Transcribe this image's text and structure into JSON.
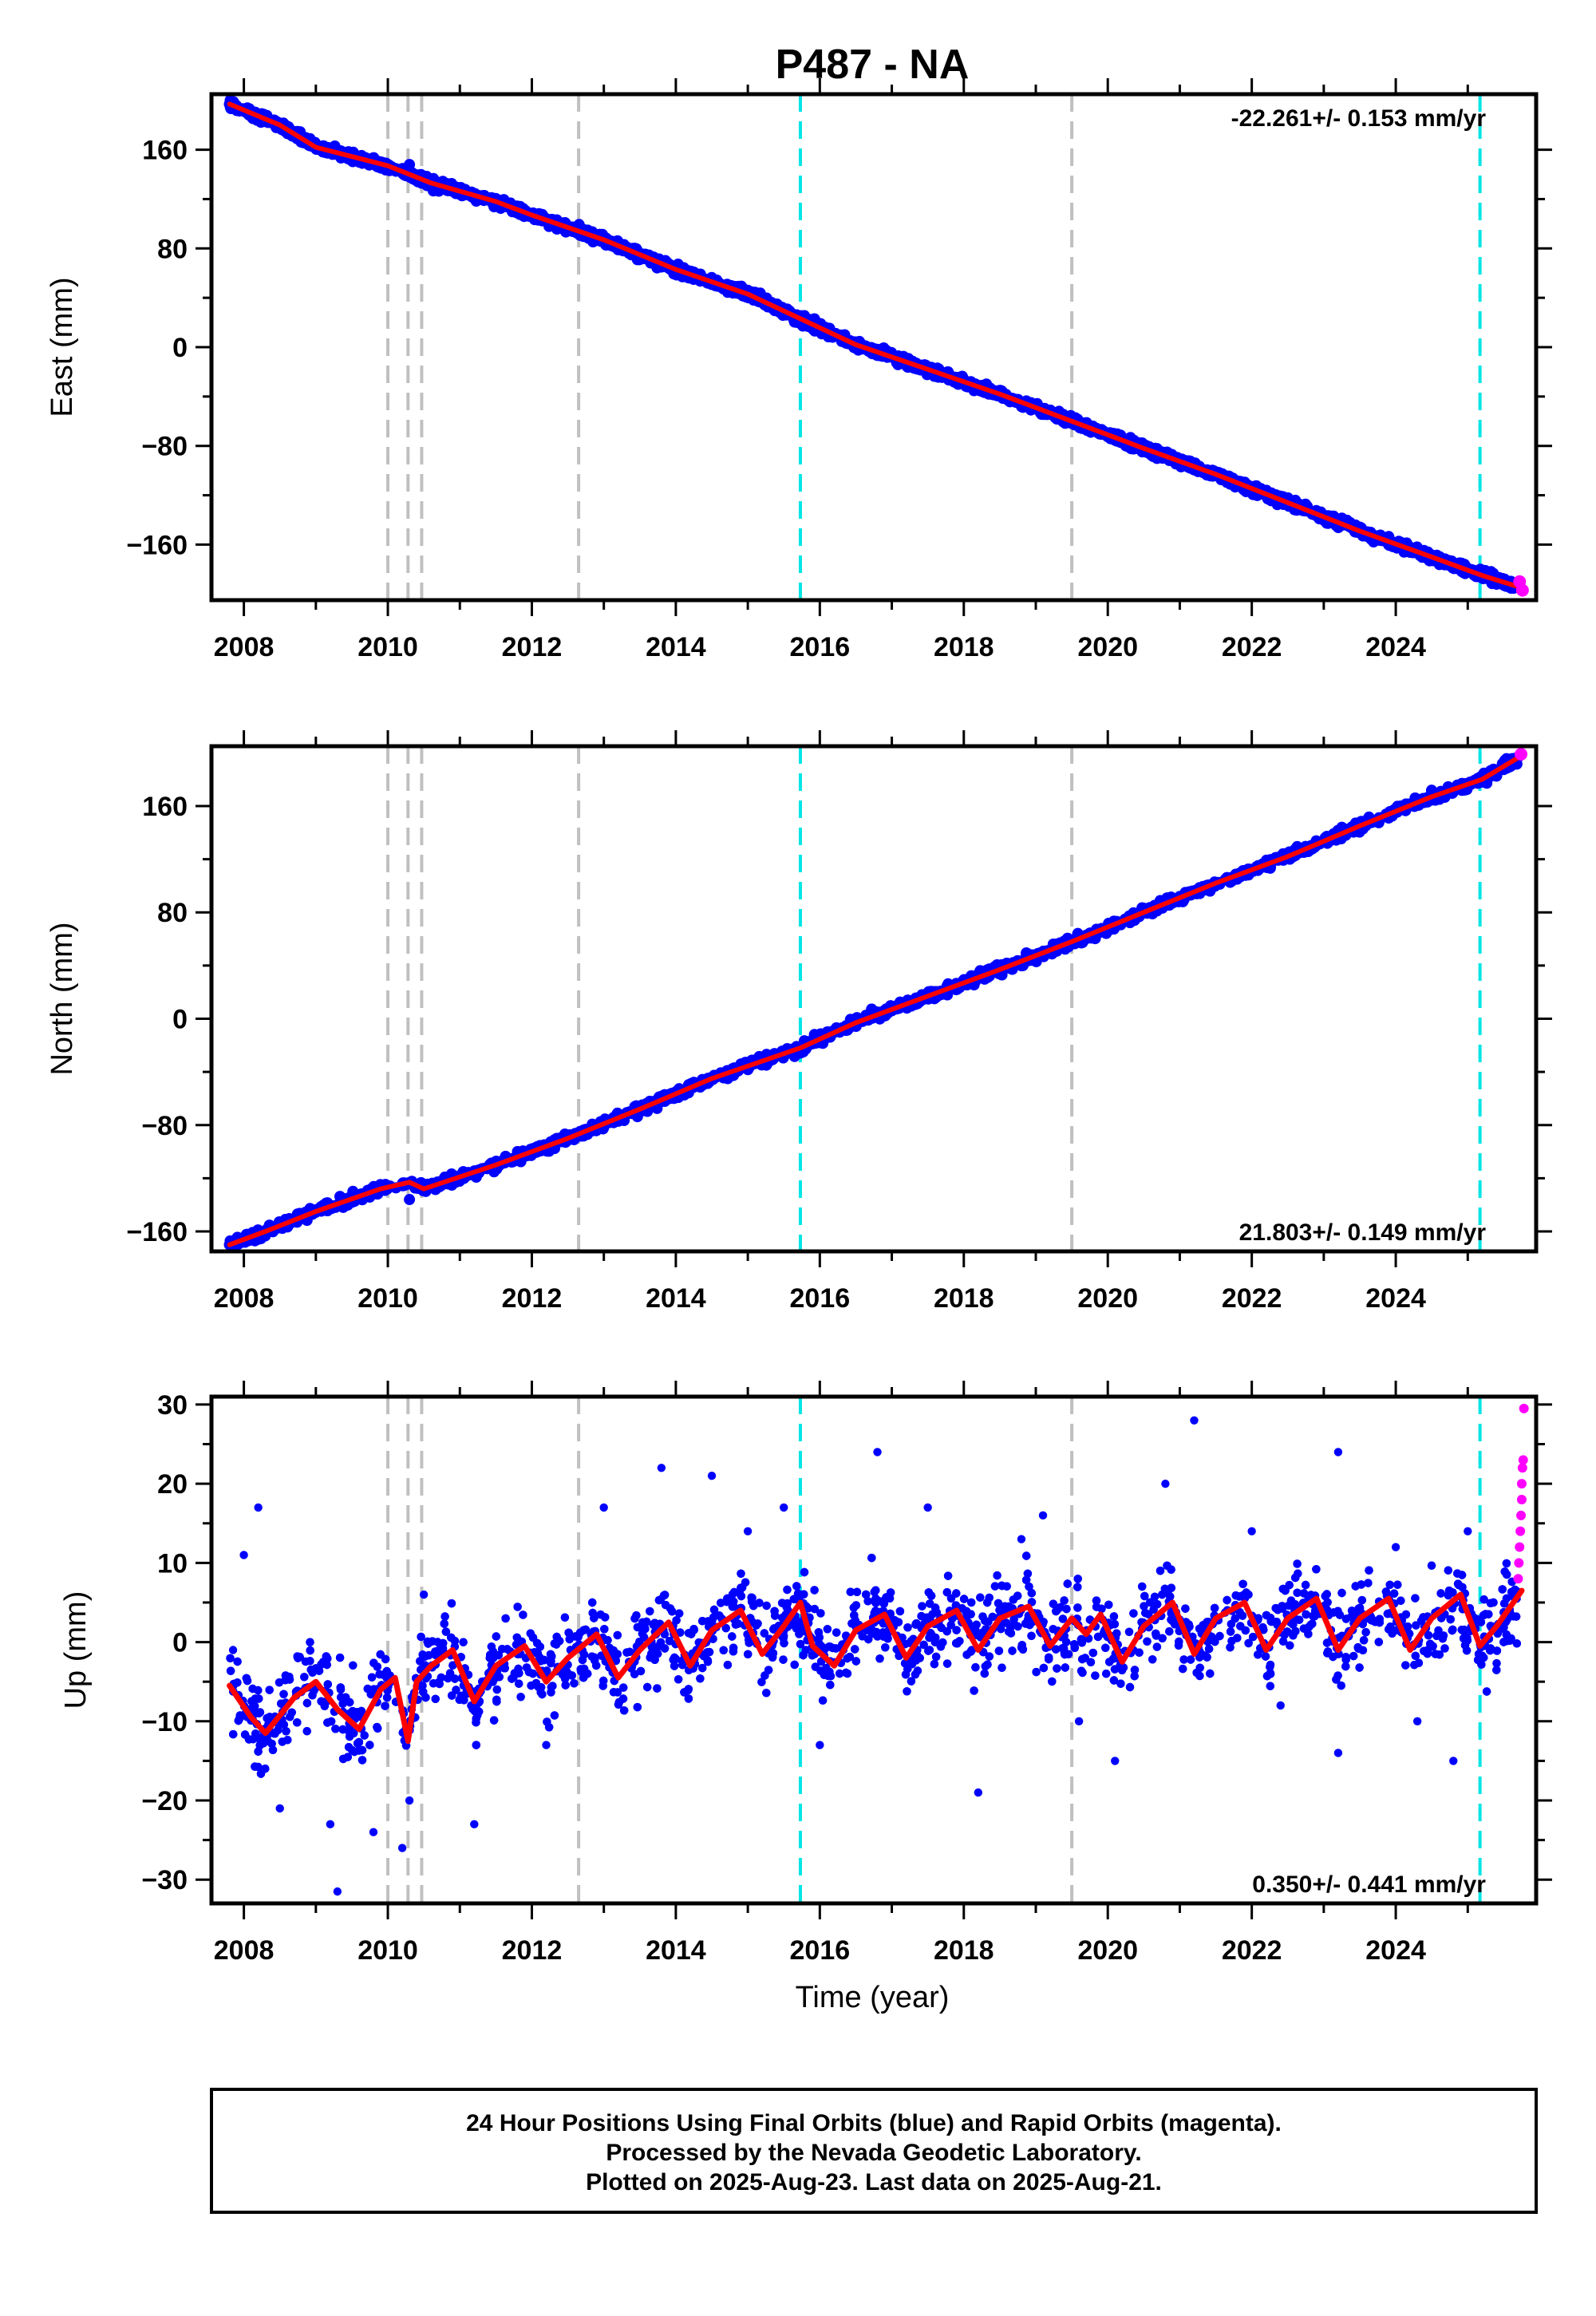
{
  "chart_data": {
    "type": "scatter",
    "title": "P487 - NA",
    "xlabel": "Time (year)",
    "xlim": [
      2007.55,
      2025.95
    ],
    "xticks": [
      2008,
      2010,
      2012,
      2014,
      2016,
      2018,
      2020,
      2022,
      2024
    ],
    "legend": "none",
    "offsets_gray": [
      2010.0,
      2010.28,
      2010.47,
      2012.65,
      2019.5
    ],
    "offsets_cyan": [
      2015.73,
      2025.17
    ],
    "colors": {
      "final": "#0000ff",
      "rapid": "#ff00ff",
      "model": "#ff0000",
      "offset_gray": "#c0c0c0",
      "offset_cyan": "#00e5e5"
    },
    "panels": [
      {
        "id": "east",
        "ylabel": "East (mm)",
        "ylim": [
          -205,
          205
        ],
        "yticks": [
          -160,
          -80,
          0,
          80,
          160
        ],
        "rate": "-22.261+/- 0.153 mm/yr",
        "rate_position": "top-right",
        "model_x": [
          2007.8,
          2008.5,
          2009.0,
          2010.0,
          2010.6,
          2011.5,
          2012.0,
          2013.0,
          2014.0,
          2015.0,
          2015.73,
          2016.5,
          2017.5,
          2018.5,
          2019.5,
          2020.5,
          2021.5,
          2022.5,
          2023.5,
          2024.5,
          2025.2,
          2025.75
        ],
        "model_y": [
          197,
          180,
          162,
          147,
          133,
          118,
          107,
          87,
          63,
          43,
          23,
          2,
          -18,
          -38,
          -60,
          -82,
          -103,
          -126,
          -149,
          -170,
          -185,
          -195
        ],
        "final_points": [
          [
            2007.8,
            197
          ],
          [
            2008.3,
            186
          ],
          [
            2009.1,
            159
          ],
          [
            2010.3,
            148
          ],
          [
            2010.5,
            135
          ],
          [
            2011.4,
            120
          ],
          [
            2012.6,
            96
          ],
          [
            2013.5,
            74
          ],
          [
            2014.6,
            52
          ],
          [
            2015.5,
            28
          ],
          [
            2016.4,
            4
          ],
          [
            2017.4,
            -16
          ],
          [
            2018.4,
            -36
          ],
          [
            2019.4,
            -58
          ],
          [
            2020.4,
            -80
          ],
          [
            2021.4,
            -100
          ],
          [
            2022.4,
            -124
          ],
          [
            2023.4,
            -147
          ],
          [
            2024.4,
            -168
          ],
          [
            2025.3,
            -188
          ]
        ],
        "rapid_points": [
          [
            2025.72,
            -190
          ],
          [
            2025.76,
            -197
          ]
        ]
      },
      {
        "id": "north",
        "ylabel": "North (mm)",
        "ylim": [
          -175,
          205
        ],
        "yticks": [
          -160,
          -80,
          0,
          80,
          160
        ],
        "rate": "21.803+/- 0.149 mm/yr",
        "rate_position": "bottom-right",
        "model_x": [
          2007.8,
          2008.3,
          2009.0,
          2009.9,
          2010.3,
          2010.5,
          2011.5,
          2012.5,
          2013.5,
          2014.5,
          2015.73,
          2016.5,
          2017.5,
          2018.5,
          2019.5,
          2020.5,
          2021.5,
          2022.5,
          2023.5,
          2024.5,
          2025.2,
          2025.75
        ],
        "model_y": [
          -170,
          -160,
          -145,
          -128,
          -123,
          -128,
          -110,
          -90,
          -68,
          -45,
          -22,
          -3,
          17,
          37,
          58,
          80,
          102,
          122,
          145,
          167,
          180,
          198
        ],
        "final_points": [
          [
            2007.8,
            -170
          ],
          [
            2008.8,
            -150
          ],
          [
            2009.8,
            -128
          ],
          [
            2010.3,
            -136
          ],
          [
            2011.0,
            -118
          ],
          [
            2012.0,
            -102
          ],
          [
            2013.0,
            -80
          ],
          [
            2014.0,
            -56
          ],
          [
            2015.0,
            -34
          ],
          [
            2016.0,
            -18
          ],
          [
            2017.0,
            6
          ],
          [
            2018.0,
            28
          ],
          [
            2019.0,
            48
          ],
          [
            2020.0,
            70
          ],
          [
            2021.0,
            92
          ],
          [
            2022.0,
            112
          ],
          [
            2023.0,
            134
          ],
          [
            2024.0,
            156
          ],
          [
            2025.0,
            176
          ]
        ],
        "rapid_points": [
          [
            2025.74,
            199
          ]
        ]
      },
      {
        "id": "up",
        "ylabel": "Up (mm)",
        "ylim": [
          -33,
          31
        ],
        "yticks": [
          -30,
          -20,
          -10,
          0,
          10,
          20,
          30
        ],
        "rate": "0.350+/- 0.441 mm/yr",
        "rate_position": "bottom-right",
        "model_x": [
          2007.8,
          2008.1,
          2008.3,
          2008.7,
          2009.0,
          2009.3,
          2009.6,
          2009.9,
          2010.1,
          2010.28,
          2010.4,
          2010.6,
          2010.9,
          2011.2,
          2011.5,
          2011.9,
          2012.2,
          2012.5,
          2012.9,
          2013.2,
          2013.5,
          2013.9,
          2014.2,
          2014.5,
          2014.9,
          2015.2,
          2015.5,
          2015.73,
          2015.9,
          2016.2,
          2016.5,
          2016.9,
          2017.2,
          2017.5,
          2017.9,
          2018.2,
          2018.5,
          2018.9,
          2019.2,
          2019.5,
          2019.7,
          2019.9,
          2020.2,
          2020.5,
          2020.9,
          2021.2,
          2021.5,
          2021.9,
          2022.2,
          2022.5,
          2022.9,
          2023.2,
          2023.5,
          2023.9,
          2024.2,
          2024.5,
          2024.9,
          2025.17,
          2025.4,
          2025.75
        ],
        "model_y": [
          -5.5,
          -9.5,
          -11.5,
          -7,
          -5,
          -8.5,
          -11,
          -6,
          -4.5,
          -12.5,
          -5,
          -3,
          -1,
          -7.5,
          -3,
          -0.5,
          -5,
          -2,
          1,
          -4.5,
          -1,
          2.5,
          -3,
          1.5,
          4,
          -1.5,
          2,
          5,
          -0.5,
          -3,
          1.5,
          3.5,
          -2,
          2,
          4,
          -1,
          3,
          4.5,
          -0.5,
          3,
          1,
          3.5,
          -2.5,
          2,
          5,
          -1.5,
          3,
          5,
          -1,
          3,
          5.5,
          -1,
          3,
          5.5,
          -1,
          3,
          6,
          -0.5,
          2,
          6.5
        ],
        "final_points": [
          [
            2007.85,
            -1
          ],
          [
            2008.0,
            11
          ],
          [
            2008.2,
            17
          ],
          [
            2008.5,
            -21
          ],
          [
            2009.2,
            -23
          ],
          [
            2009.3,
            -31.5
          ],
          [
            2009.8,
            -24
          ],
          [
            2010.2,
            -26
          ],
          [
            2010.3,
            -20
          ],
          [
            2010.5,
            6
          ],
          [
            2011.2,
            -23
          ],
          [
            2012.2,
            -13
          ],
          [
            2013.0,
            17
          ],
          [
            2013.8,
            22
          ],
          [
            2014.5,
            21
          ],
          [
            2015.0,
            14
          ],
          [
            2015.5,
            17
          ],
          [
            2016.0,
            -13
          ],
          [
            2016.8,
            24
          ],
          [
            2017.5,
            17
          ],
          [
            2018.2,
            -19
          ],
          [
            2018.8,
            13
          ],
          [
            2019.1,
            16
          ],
          [
            2019.6,
            -10
          ],
          [
            2020.1,
            -15
          ],
          [
            2020.8,
            20
          ],
          [
            2021.2,
            28
          ],
          [
            2022.0,
            14
          ],
          [
            2022.4,
            -8
          ],
          [
            2023.2,
            24
          ],
          [
            2023.2,
            -14
          ],
          [
            2024.0,
            12
          ],
          [
            2024.3,
            -10
          ],
          [
            2024.8,
            -15
          ],
          [
            2025.0,
            14
          ]
        ],
        "rapid_points": [
          [
            2025.7,
            8
          ],
          [
            2025.71,
            10
          ],
          [
            2025.72,
            12
          ],
          [
            2025.73,
            14
          ],
          [
            2025.74,
            16
          ],
          [
            2025.75,
            18
          ],
          [
            2025.75,
            20
          ],
          [
            2025.76,
            22
          ],
          [
            2025.77,
            23
          ],
          [
            2025.78,
            29.5
          ]
        ]
      }
    ]
  },
  "note": {
    "line1": "24 Hour Positions Using Final Orbits (blue) and Rapid Orbits (magenta).",
    "line2": "Processed by the Nevada Geodetic Laboratory.",
    "line3": "Plotted on 2025-Aug-23. Last data on 2025-Aug-21."
  }
}
